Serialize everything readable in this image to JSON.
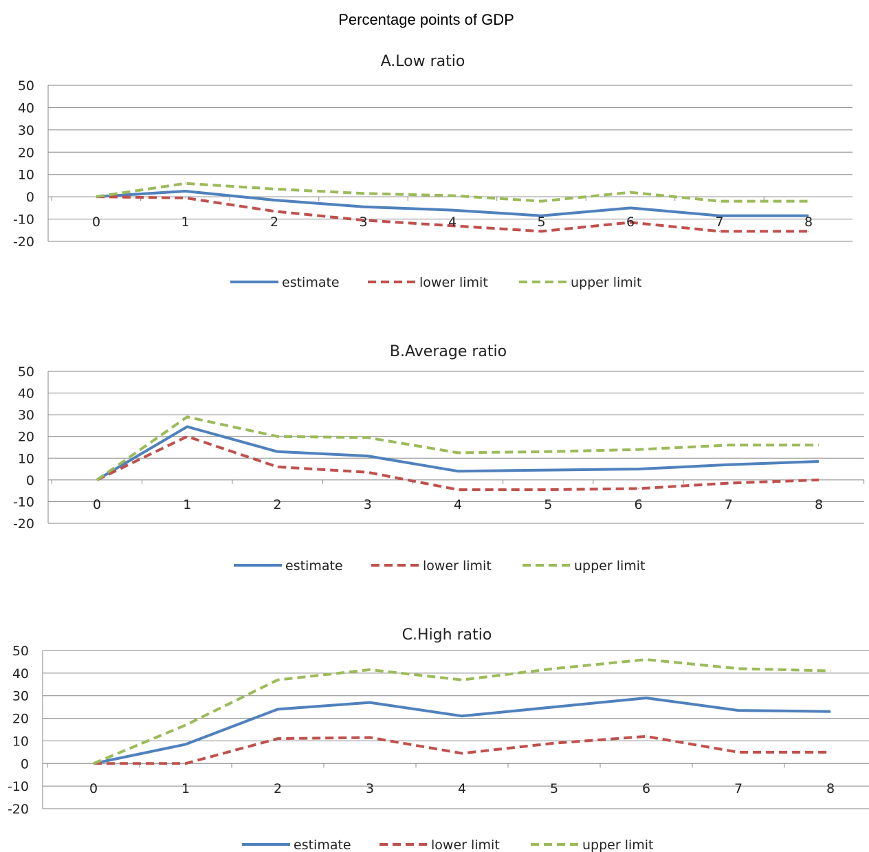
{
  "figure_title": "Percentage points of GDP",
  "colors": {
    "estimate": "#4f81bd",
    "lower": "#c0504d",
    "upper": "#9bbb59",
    "grid": "#868686"
  },
  "chart_data": [
    {
      "type": "line",
      "title": "A.Low ratio",
      "x": [
        0,
        1,
        2,
        3,
        4,
        5,
        6,
        7,
        8
      ],
      "ylim": [
        -20,
        50
      ],
      "yticks": [
        "50",
        "40",
        "30",
        "20",
        "10",
        "0",
        "-10",
        "-20"
      ],
      "xticks": [
        "0",
        "1",
        "2",
        "3",
        "4",
        "5",
        "6",
        "7",
        "8"
      ],
      "grid": true,
      "legend_position": "bottom",
      "series": [
        {
          "name": "estimate",
          "style": "solid",
          "values": [
            0,
            2.5,
            -1.5,
            -4.5,
            -6,
            -8.5,
            -5,
            -8.5,
            -8.5
          ]
        },
        {
          "name": "lower limit",
          "style": "dashed",
          "values": [
            0,
            -0.5,
            -6.5,
            -10.5,
            -13,
            -15.5,
            -11.5,
            -15.5,
            -15.5
          ]
        },
        {
          "name": "upper limit",
          "style": "dashed",
          "values": [
            0,
            6,
            3.5,
            1.5,
            0.5,
            -2,
            2,
            -2,
            -2
          ]
        }
      ]
    },
    {
      "type": "line",
      "title": "B.Average ratio",
      "x": [
        0,
        1,
        2,
        3,
        4,
        5,
        6,
        7,
        8
      ],
      "ylim": [
        -20,
        50
      ],
      "yticks": [
        "50",
        "40",
        "30",
        "20",
        "10",
        "0",
        "-10",
        "-20"
      ],
      "xticks": [
        "0",
        "1",
        "2",
        "3",
        "4",
        "5",
        "6",
        "7",
        "8"
      ],
      "grid": true,
      "legend_position": "bottom",
      "series": [
        {
          "name": "estimate",
          "style": "solid",
          "values": [
            0,
            24.5,
            13,
            11,
            4,
            4.5,
            5,
            7,
            8.5
          ]
        },
        {
          "name": "lower limit",
          "style": "dashed",
          "values": [
            0,
            20,
            6,
            3.5,
            -4.5,
            -4.5,
            -4,
            -1.5,
            0
          ]
        },
        {
          "name": "upper limit",
          "style": "dashed",
          "values": [
            0,
            29,
            20,
            19.5,
            12.5,
            13,
            14,
            16,
            16
          ]
        }
      ]
    },
    {
      "type": "line",
      "title": "C.High  ratio",
      "x": [
        0,
        1,
        2,
        3,
        4,
        5,
        6,
        7,
        8
      ],
      "ylim": [
        -20,
        50
      ],
      "yticks": [
        "50",
        "40",
        "30",
        "20",
        "10",
        "0",
        "-10",
        "-20"
      ],
      "xticks": [
        "0",
        "1",
        "2",
        "3",
        "4",
        "5",
        "6",
        "7",
        "8"
      ],
      "grid": true,
      "legend_position": "bottom",
      "series": [
        {
          "name": "estimate",
          "style": "solid",
          "values": [
            0,
            8.5,
            24,
            27,
            21,
            25,
            29,
            23.5,
            23
          ]
        },
        {
          "name": "lower limit",
          "style": "dashed",
          "values": [
            0,
            0,
            11,
            11.5,
            4.5,
            9,
            12,
            5,
            5
          ]
        },
        {
          "name": "upper limit",
          "style": "dashed",
          "values": [
            0,
            17,
            37,
            41.5,
            37,
            42,
            46,
            42,
            41
          ]
        }
      ]
    }
  ]
}
